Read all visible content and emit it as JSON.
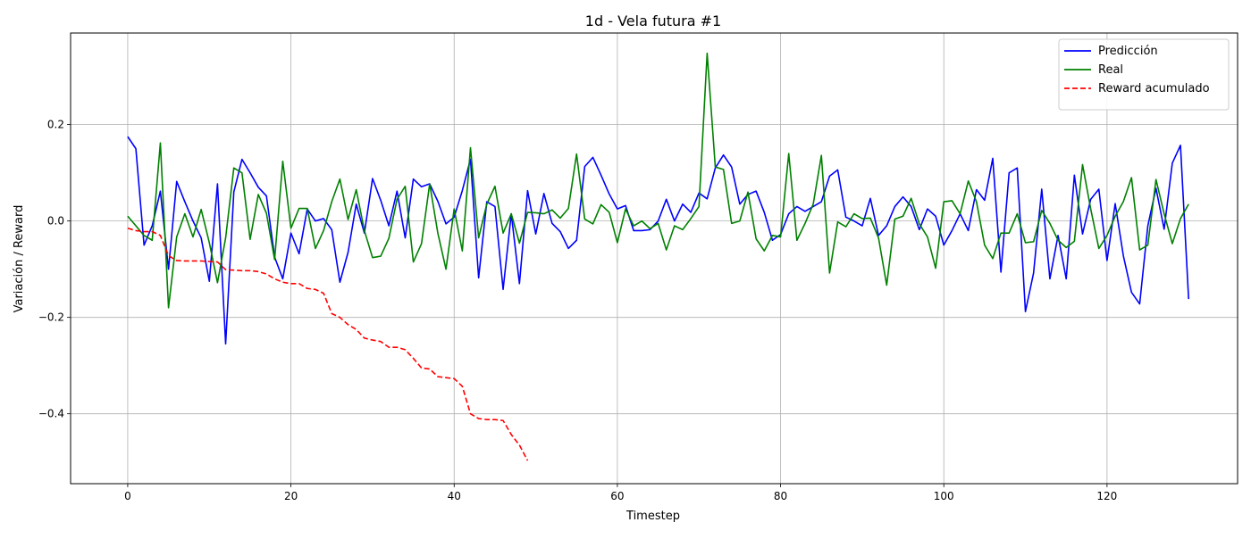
{
  "chart_data": {
    "type": "line",
    "title": "1d - Vela futura #1",
    "xlabel": "Timestep",
    "ylabel": "Variación / Reward",
    "xlim": [
      -7,
      136
    ],
    "ylim": [
      -0.545,
      0.39
    ],
    "xticks": [
      0,
      20,
      40,
      60,
      80,
      100,
      120
    ],
    "xtick_labels": [
      "0",
      "20",
      "40",
      "60",
      "80",
      "100",
      "120"
    ],
    "yticks": [
      -0.4,
      -0.2,
      0.0,
      0.2
    ],
    "ytick_labels": [
      "−0.4",
      "−0.2",
      "0.0",
      "0.2"
    ],
    "grid": true,
    "legend_position": "top-right",
    "series": [
      {
        "name": "Predicción",
        "color": "#0000ff",
        "dash": "solid",
        "values": [
          0.175,
          0.15,
          -0.05,
          -0.01,
          0.062,
          -0.1,
          0.082,
          0.04,
          0.0,
          -0.035,
          -0.125,
          0.077,
          -0.255,
          0.06,
          0.128,
          0.1,
          0.07,
          0.052,
          -0.075,
          -0.12,
          -0.025,
          -0.068,
          0.025,
          0.0,
          0.005,
          -0.018,
          -0.127,
          -0.065,
          0.035,
          -0.025,
          0.088,
          0.043,
          -0.01,
          0.062,
          -0.035,
          0.087,
          0.071,
          0.077,
          0.041,
          -0.006,
          0.008,
          0.063,
          0.128,
          -0.118,
          0.04,
          0.03,
          -0.142,
          0.015,
          -0.13,
          0.063,
          -0.027,
          0.057,
          -0.005,
          -0.022,
          -0.057,
          -0.04,
          0.113,
          0.132,
          0.095,
          0.056,
          0.025,
          0.032,
          -0.02,
          -0.02,
          -0.018,
          0.0,
          0.045,
          0.0,
          0.035,
          0.018,
          0.058,
          0.046,
          0.11,
          0.137,
          0.112,
          0.035,
          0.055,
          0.062,
          0.018,
          -0.04,
          -0.028,
          0.015,
          0.03,
          0.02,
          0.03,
          0.04,
          0.093,
          0.106,
          0.008,
          0.0,
          -0.01,
          0.047,
          -0.03,
          -0.01,
          0.03,
          0.05,
          0.03,
          -0.018,
          0.025,
          0.01,
          -0.05,
          -0.02,
          0.015,
          -0.02,
          0.065,
          0.043,
          0.13,
          -0.106,
          0.1,
          0.11,
          -0.188,
          -0.108,
          0.066,
          -0.12,
          -0.03,
          -0.12,
          0.095,
          -0.027,
          0.045,
          0.066,
          -0.082,
          0.036,
          -0.072,
          -0.148,
          -0.172,
          -0.01,
          0.068,
          -0.017,
          0.12,
          0.157,
          -0.162
        ]
      },
      {
        "name": "Real",
        "color": "#008000",
        "dash": "solid",
        "values": [
          0.01,
          -0.01,
          -0.03,
          -0.04,
          0.162,
          -0.18,
          -0.033,
          0.015,
          -0.033,
          0.024,
          -0.045,
          -0.128,
          -0.035,
          0.11,
          0.1,
          -0.038,
          0.055,
          0.016,
          -0.08,
          0.124,
          -0.015,
          0.026,
          0.026,
          -0.057,
          -0.02,
          0.04,
          0.087,
          0.003,
          0.065,
          -0.02,
          -0.076,
          -0.073,
          -0.036,
          0.045,
          0.072,
          -0.085,
          -0.047,
          0.077,
          -0.025,
          -0.1,
          0.025,
          -0.062,
          0.152,
          -0.035,
          0.035,
          0.072,
          -0.025,
          0.015,
          -0.046,
          0.018,
          0.017,
          0.015,
          0.023,
          0.006,
          0.026,
          0.139,
          0.004,
          -0.006,
          0.034,
          0.018,
          -0.045,
          0.025,
          -0.01,
          0.0,
          -0.016,
          -0.005,
          -0.06,
          -0.01,
          -0.018,
          0.005,
          0.03,
          0.348,
          0.112,
          0.107,
          -0.005,
          0.0,
          0.06,
          -0.037,
          -0.062,
          -0.03,
          -0.033,
          0.14,
          -0.04,
          -0.005,
          0.035,
          0.136,
          -0.108,
          -0.002,
          -0.012,
          0.015,
          0.005,
          0.006,
          -0.035,
          -0.133,
          0.004,
          0.01,
          0.047,
          -0.006,
          -0.033,
          -0.098,
          0.04,
          0.042,
          0.015,
          0.083,
          0.04,
          -0.05,
          -0.078,
          -0.025,
          -0.025,
          0.015,
          -0.045,
          -0.043,
          0.022,
          -0.005,
          -0.04,
          -0.055,
          -0.042,
          0.117,
          0.025,
          -0.057,
          -0.03,
          0.01,
          0.04,
          0.09,
          -0.06,
          -0.05,
          0.086,
          0.015,
          -0.047,
          0.005,
          0.035
        ]
      },
      {
        "name": "Reward acumulado",
        "color": "#ff0000",
        "dash": "dashed",
        "values": [
          -0.015,
          -0.02,
          -0.022,
          -0.022,
          -0.03,
          -0.072,
          -0.082,
          -0.083,
          -0.083,
          -0.083,
          -0.084,
          -0.085,
          -0.101,
          -0.102,
          -0.103,
          -0.103,
          -0.105,
          -0.11,
          -0.12,
          -0.127,
          -0.13,
          -0.13,
          -0.14,
          -0.142,
          -0.15,
          -0.192,
          -0.2,
          -0.215,
          -0.225,
          -0.243,
          -0.247,
          -0.25,
          -0.262,
          -0.262,
          -0.267,
          -0.285,
          -0.305,
          -0.307,
          -0.323,
          -0.325,
          -0.327,
          -0.343,
          -0.4,
          -0.41,
          -0.412,
          -0.412,
          -0.414,
          -0.443,
          -0.465,
          -0.497
        ]
      }
    ]
  }
}
